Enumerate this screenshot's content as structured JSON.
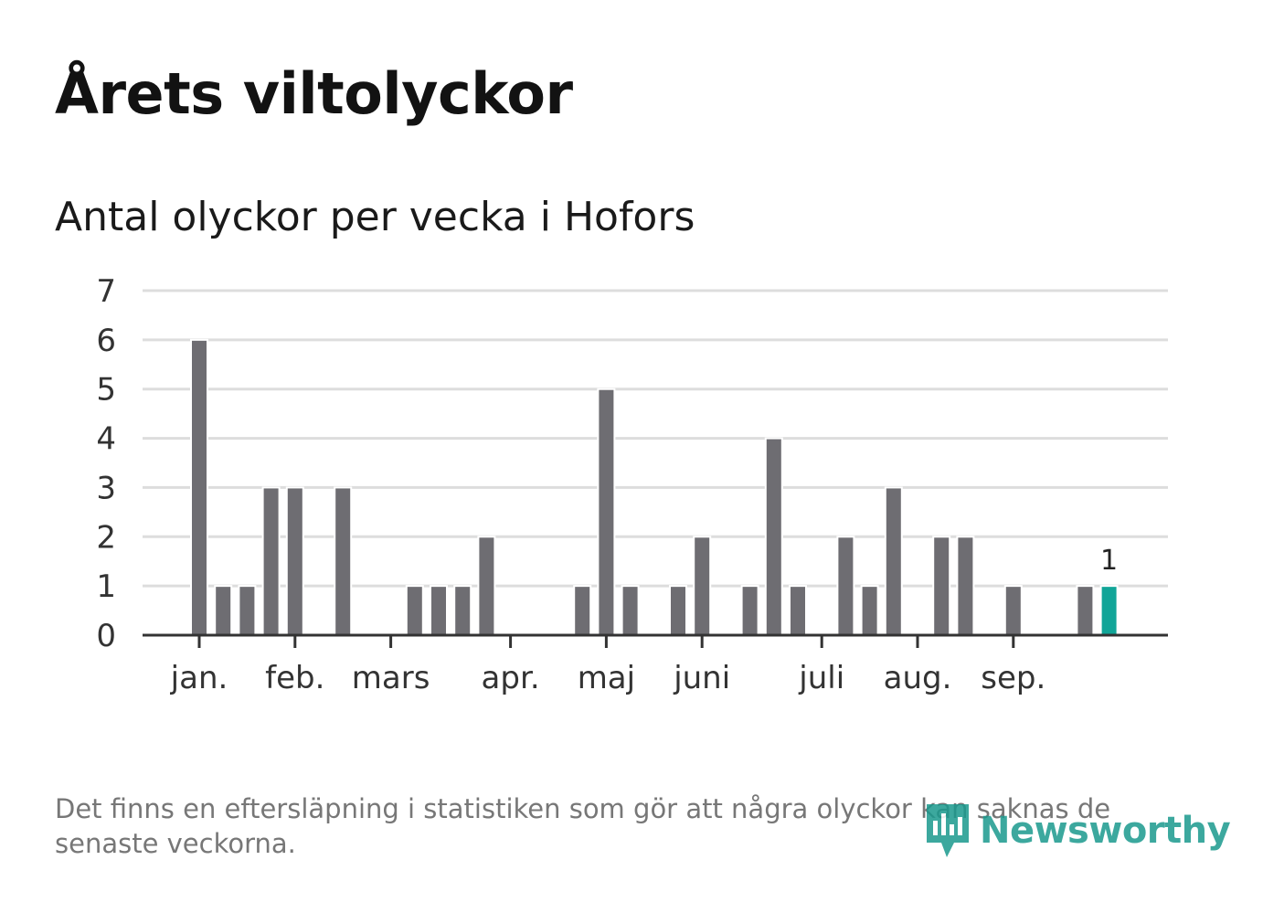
{
  "header": {
    "title": "Årets viltolyckor",
    "subtitle": "Antal olyckor per vecka i Hofors"
  },
  "chart_data": {
    "type": "bar",
    "title": "Årets viltolyckor",
    "subtitle": "Antal olyckor per vecka i Hofors",
    "xlabel": "",
    "ylabel": "",
    "ylim": [
      0,
      7
    ],
    "yticks": [
      0,
      1,
      2,
      3,
      4,
      5,
      6,
      7
    ],
    "grid": true,
    "weeks": [
      1,
      2,
      3,
      4,
      5,
      6,
      7,
      8,
      9,
      10,
      11,
      12,
      13,
      14,
      15,
      16,
      17,
      18,
      19,
      20,
      21,
      22,
      23,
      24,
      25,
      26,
      27,
      28,
      29,
      30,
      31,
      32,
      33,
      34,
      35,
      36,
      37,
      38,
      39
    ],
    "values": [
      6,
      1,
      1,
      3,
      3,
      0,
      3,
      0,
      0,
      1,
      1,
      1,
      2,
      0,
      0,
      0,
      1,
      5,
      1,
      0,
      1,
      2,
      0,
      1,
      4,
      1,
      0,
      2,
      1,
      3,
      0,
      2,
      2,
      0,
      1,
      0,
      0,
      1,
      1
    ],
    "highlight_index": 38,
    "highlight_label": "1",
    "month_ticks": [
      {
        "label": "jan.",
        "week": 1
      },
      {
        "label": "feb.",
        "week": 5
      },
      {
        "label": "mars",
        "week": 9
      },
      {
        "label": "apr.",
        "week": 14
      },
      {
        "label": "maj",
        "week": 18
      },
      {
        "label": "juni",
        "week": 22
      },
      {
        "label": "juli",
        "week": 27
      },
      {
        "label": "aug.",
        "week": 31
      },
      {
        "label": "sep.",
        "week": 35
      }
    ],
    "colors": {
      "bar": "#6e6d72",
      "highlight": "#11a598",
      "grid": "#dddddd",
      "axis": "#333333"
    }
  },
  "footnote": "Det finns en eftersläpning i statistiken som gör att några olyckor kan saknas de senaste veckorna.",
  "brand": {
    "name": "Newsworthy",
    "color": "#1b9a8e",
    "icon": "bar-chart-speech-bubble-icon"
  }
}
